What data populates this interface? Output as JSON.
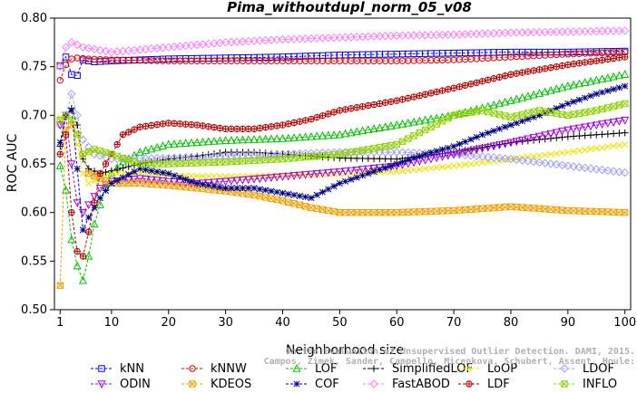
{
  "chart_data": {
    "type": "line",
    "title": "Pima_withoutdupl_norm_05_v08",
    "xlabel": "Neighborhood size",
    "ylabel": "ROC AUC",
    "xlim": [
      0,
      101
    ],
    "ylim": [
      0.5,
      0.8
    ],
    "x_ticks": [
      1,
      10,
      20,
      30,
      40,
      50,
      60,
      70,
      80,
      90,
      100
    ],
    "y_ticks": [
      0.5,
      0.55,
      0.6,
      0.65,
      0.7,
      0.75,
      0.8
    ],
    "y_tick_labels": [
      "0.50",
      "0.55",
      "0.60",
      "0.65",
      "0.70",
      "0.75",
      "0.80"
    ],
    "legend_position": "bottom",
    "watermark": "Campos, Zimek, Sander, Campello, Micenkova, Schubert, Assent, Houle: On the Evaluation of Unsupervised Outlier Detection. DAMI, 2015.",
    "watermark_lines": [
      "Campos, Zimek, Sander, Campello, Micenkova, Schubert, Assent, Houle:",
      "On the Evaluation of Unsupervised Outlier Detection. DAMI, 2015."
    ],
    "series": [
      {
        "name": "kNN",
        "color": "#0000ff",
        "marker": "square",
        "points": [
          [
            1,
            0.751
          ],
          [
            2,
            0.76
          ],
          [
            3,
            0.742
          ],
          [
            4,
            0.741
          ],
          [
            5,
            0.757
          ],
          [
            7,
            0.755
          ],
          [
            10,
            0.756
          ],
          [
            15,
            0.757
          ],
          [
            20,
            0.758
          ],
          [
            30,
            0.759
          ],
          [
            40,
            0.76
          ],
          [
            50,
            0.762
          ],
          [
            60,
            0.763
          ],
          [
            70,
            0.764
          ],
          [
            80,
            0.765
          ],
          [
            90,
            0.765
          ],
          [
            100,
            0.766
          ]
        ]
      },
      {
        "name": "kNNW",
        "color": "#e00000",
        "marker": "circle",
        "points": [
          [
            1,
            0.736
          ],
          [
            2,
            0.752
          ],
          [
            3,
            0.758
          ],
          [
            4,
            0.759
          ],
          [
            6,
            0.758
          ],
          [
            10,
            0.757
          ],
          [
            20,
            0.756
          ],
          [
            30,
            0.756
          ],
          [
            40,
            0.756
          ],
          [
            50,
            0.756
          ],
          [
            60,
            0.756
          ],
          [
            70,
            0.757
          ],
          [
            80,
            0.76
          ],
          [
            90,
            0.763
          ],
          [
            100,
            0.765
          ]
        ]
      },
      {
        "name": "LOF",
        "color": "#00c000",
        "marker": "triangle-up",
        "points": [
          [
            1,
            0.648
          ],
          [
            2,
            0.623
          ],
          [
            3,
            0.572
          ],
          [
            4,
            0.545
          ],
          [
            5,
            0.53
          ],
          [
            6,
            0.555
          ],
          [
            7,
            0.588
          ],
          [
            8,
            0.608
          ],
          [
            9,
            0.626
          ],
          [
            10,
            0.64
          ],
          [
            12,
            0.652
          ],
          [
            15,
            0.662
          ],
          [
            20,
            0.67
          ],
          [
            25,
            0.672
          ],
          [
            30,
            0.674
          ],
          [
            40,
            0.676
          ],
          [
            50,
            0.68
          ],
          [
            55,
            0.685
          ],
          [
            60,
            0.69
          ],
          [
            70,
            0.7
          ],
          [
            80,
            0.715
          ],
          [
            90,
            0.73
          ],
          [
            100,
            0.742
          ]
        ]
      },
      {
        "name": "SimplifiedLOF",
        "color": "#000000",
        "marker": "plus",
        "points": [
          [
            1,
            0.668
          ],
          [
            2,
            0.7
          ],
          [
            3,
            0.707
          ],
          [
            4,
            0.69
          ],
          [
            5,
            0.655
          ],
          [
            6,
            0.645
          ],
          [
            8,
            0.64
          ],
          [
            10,
            0.643
          ],
          [
            15,
            0.65
          ],
          [
            20,
            0.655
          ],
          [
            25,
            0.658
          ],
          [
            30,
            0.662
          ],
          [
            35,
            0.662
          ],
          [
            40,
            0.66
          ],
          [
            50,
            0.656
          ],
          [
            60,
            0.655
          ],
          [
            70,
            0.662
          ],
          [
            80,
            0.672
          ],
          [
            90,
            0.678
          ],
          [
            100,
            0.682
          ]
        ]
      },
      {
        "name": "LoOP",
        "color": "#f0e000",
        "marker": "x",
        "points": [
          [
            1,
            0.698
          ],
          [
            2,
            0.698
          ],
          [
            3,
            0.695
          ],
          [
            4,
            0.67
          ],
          [
            5,
            0.64
          ],
          [
            6,
            0.63
          ],
          [
            8,
            0.635
          ],
          [
            10,
            0.64
          ],
          [
            15,
            0.64
          ],
          [
            20,
            0.638
          ],
          [
            30,
            0.637
          ],
          [
            40,
            0.638
          ],
          [
            50,
            0.64
          ],
          [
            60,
            0.642
          ],
          [
            70,
            0.648
          ],
          [
            80,
            0.655
          ],
          [
            90,
            0.662
          ],
          [
            100,
            0.67
          ]
        ]
      },
      {
        "name": "LDOF",
        "color": "#a0a0ff",
        "marker": "diamond",
        "points": [
          [
            1,
            0.69
          ],
          [
            2,
            0.7
          ],
          [
            3,
            0.722
          ],
          [
            4,
            0.7
          ],
          [
            5,
            0.675
          ],
          [
            7,
            0.66
          ],
          [
            10,
            0.655
          ],
          [
            20,
            0.656
          ],
          [
            30,
            0.658
          ],
          [
            40,
            0.66
          ],
          [
            50,
            0.662
          ],
          [
            60,
            0.662
          ],
          [
            70,
            0.66
          ],
          [
            80,
            0.655
          ],
          [
            90,
            0.648
          ],
          [
            100,
            0.641
          ]
        ]
      },
      {
        "name": "ODIN",
        "color": "#a000e0",
        "marker": "triangle-down",
        "points": [
          [
            1,
            0.69
          ],
          [
            2,
            0.7
          ],
          [
            3,
            0.65
          ],
          [
            4,
            0.61
          ],
          [
            5,
            0.6
          ],
          [
            6,
            0.608
          ],
          [
            8,
            0.625
          ],
          [
            10,
            0.632
          ],
          [
            15,
            0.635
          ],
          [
            20,
            0.632
          ],
          [
            25,
            0.63
          ],
          [
            30,
            0.632
          ],
          [
            40,
            0.637
          ],
          [
            50,
            0.642
          ],
          [
            60,
            0.648
          ],
          [
            70,
            0.66
          ],
          [
            80,
            0.672
          ],
          [
            90,
            0.685
          ],
          [
            100,
            0.695
          ]
        ]
      },
      {
        "name": "KDEOS",
        "color": "#f0a000",
        "marker": "square-x",
        "points": [
          [
            1,
            0.525
          ],
          [
            2,
            0.685
          ],
          [
            3,
            0.69
          ],
          [
            4,
            0.68
          ],
          [
            5,
            0.66
          ],
          [
            6,
            0.64
          ],
          [
            8,
            0.635
          ],
          [
            10,
            0.63
          ],
          [
            15,
            0.63
          ],
          [
            20,
            0.628
          ],
          [
            25,
            0.625
          ],
          [
            30,
            0.622
          ],
          [
            35,
            0.618
          ],
          [
            40,
            0.612
          ],
          [
            45,
            0.605
          ],
          [
            50,
            0.6
          ],
          [
            60,
            0.6
          ],
          [
            70,
            0.602
          ],
          [
            80,
            0.606
          ],
          [
            90,
            0.602
          ],
          [
            100,
            0.6
          ]
        ]
      },
      {
        "name": "COF",
        "color": "#000080",
        "marker": "star",
        "points": [
          [
            1,
            0.672
          ],
          [
            2,
            0.7
          ],
          [
            3,
            0.705
          ],
          [
            4,
            0.645
          ],
          [
            5,
            0.582
          ],
          [
            6,
            0.595
          ],
          [
            8,
            0.615
          ],
          [
            10,
            0.63
          ],
          [
            15,
            0.645
          ],
          [
            20,
            0.64
          ],
          [
            25,
            0.63
          ],
          [
            30,
            0.625
          ],
          [
            35,
            0.625
          ],
          [
            40,
            0.62
          ],
          [
            45,
            0.615
          ],
          [
            50,
            0.63
          ],
          [
            55,
            0.64
          ],
          [
            60,
            0.65
          ],
          [
            65,
            0.66
          ],
          [
            70,
            0.668
          ],
          [
            75,
            0.68
          ],
          [
            80,
            0.69
          ],
          [
            85,
            0.7
          ],
          [
            90,
            0.712
          ],
          [
            95,
            0.722
          ],
          [
            100,
            0.73
          ]
        ]
      },
      {
        "name": "FastABOD",
        "color": "#ff80ff",
        "marker": "diamond",
        "points": [
          [
            1,
            0.75
          ],
          [
            2,
            0.77
          ],
          [
            3,
            0.775
          ],
          [
            5,
            0.77
          ],
          [
            10,
            0.765
          ],
          [
            20,
            0.77
          ],
          [
            30,
            0.775
          ],
          [
            40,
            0.778
          ],
          [
            50,
            0.78
          ],
          [
            60,
            0.782
          ],
          [
            70,
            0.783
          ],
          [
            80,
            0.785
          ],
          [
            90,
            0.786
          ],
          [
            100,
            0.787
          ]
        ]
      },
      {
        "name": "LDF",
        "color": "#b00000",
        "marker": "circle-plus",
        "points": [
          [
            1,
            0.66
          ],
          [
            2,
            0.68
          ],
          [
            3,
            0.6
          ],
          [
            4,
            0.56
          ],
          [
            5,
            0.555
          ],
          [
            6,
            0.58
          ],
          [
            8,
            0.64
          ],
          [
            10,
            0.66
          ],
          [
            12,
            0.68
          ],
          [
            15,
            0.688
          ],
          [
            20,
            0.692
          ],
          [
            25,
            0.69
          ],
          [
            30,
            0.686
          ],
          [
            35,
            0.686
          ],
          [
            40,
            0.69
          ],
          [
            45,
            0.696
          ],
          [
            50,
            0.705
          ],
          [
            60,
            0.715
          ],
          [
            70,
            0.728
          ],
          [
            80,
            0.742
          ],
          [
            90,
            0.752
          ],
          [
            100,
            0.76
          ]
        ]
      },
      {
        "name": "INFLO",
        "color": "#90d000",
        "marker": "square-x",
        "points": [
          [
            1,
            0.695
          ],
          [
            2,
            0.7
          ],
          [
            3,
            0.695
          ],
          [
            4,
            0.68
          ],
          [
            5,
            0.66
          ],
          [
            7,
            0.665
          ],
          [
            10,
            0.66
          ],
          [
            15,
            0.65
          ],
          [
            20,
            0.65
          ],
          [
            30,
            0.652
          ],
          [
            40,
            0.655
          ],
          [
            50,
            0.66
          ],
          [
            60,
            0.67
          ],
          [
            65,
            0.685
          ],
          [
            70,
            0.7
          ],
          [
            75,
            0.705
          ],
          [
            80,
            0.698
          ],
          [
            85,
            0.705
          ],
          [
            90,
            0.7
          ],
          [
            95,
            0.705
          ],
          [
            100,
            0.712
          ]
        ]
      }
    ]
  }
}
